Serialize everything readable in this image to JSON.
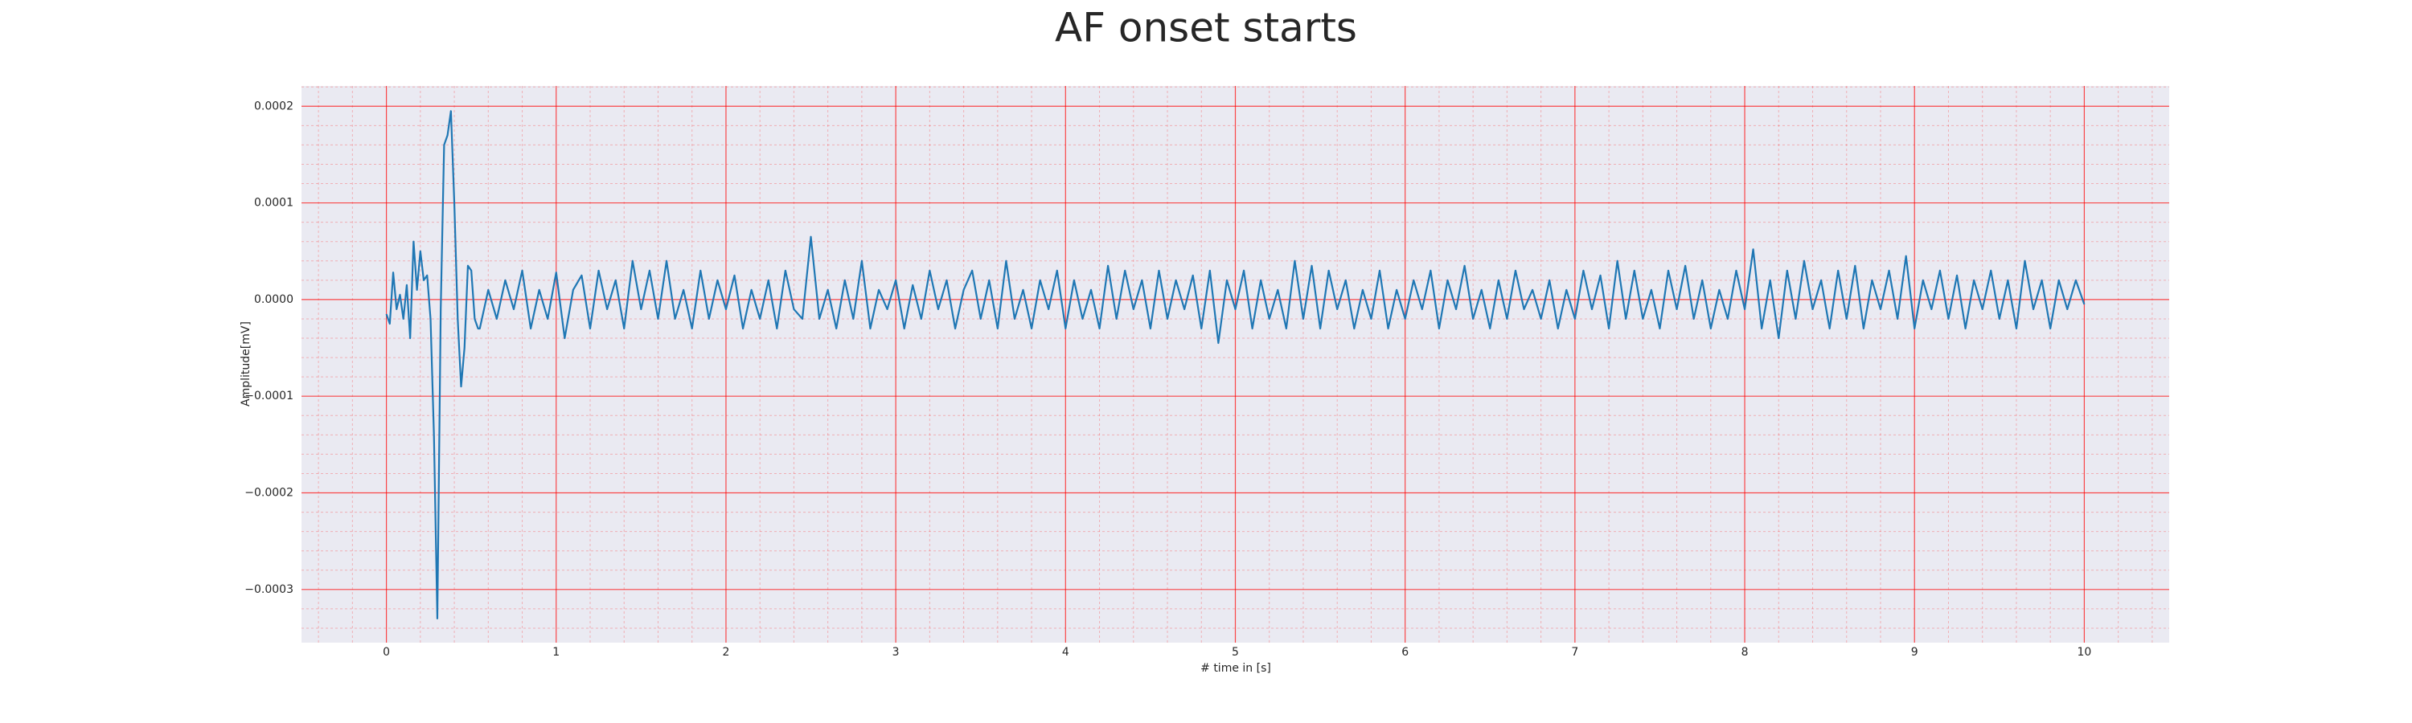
{
  "chart_data": {
    "type": "line",
    "title": "AF onset starts",
    "x_label": "# time in [s]",
    "y_label": "Amplitude[mV]",
    "color": "#1f77b4",
    "grid": true,
    "grid_color": "#ff0000",
    "background": "#eaeaf2",
    "xlim": [
      -0.5,
      10.5
    ],
    "ylim": [
      -0.000355,
      0.000221
    ],
    "xticks": [
      0,
      1,
      2,
      3,
      4,
      5,
      6,
      7,
      8,
      9,
      10
    ],
    "yticks": [
      {
        "value": -0.0003,
        "label": "−0.0003"
      },
      {
        "value": -0.0002,
        "label": "−0.0002"
      },
      {
        "value": -0.0001,
        "label": "−0.0001"
      },
      {
        "value": 0,
        "label": "0.0000"
      },
      {
        "value": 0.0001,
        "label": "0.0001"
      },
      {
        "value": 0.0002,
        "label": "0.0002"
      }
    ],
    "xminorticks": [
      -0.4,
      -0.2,
      0.2,
      0.4,
      0.6,
      0.8,
      1.2,
      1.4,
      1.6,
      1.8,
      2.2,
      2.4,
      2.6,
      2.8,
      3.2,
      3.4,
      3.6,
      3.8,
      4.2,
      4.4,
      4.6,
      4.8,
      5.2,
      5.4,
      5.6,
      5.8,
      6.2,
      6.4,
      6.6,
      6.8,
      7.2,
      7.4,
      7.6,
      7.8,
      8.2,
      8.4,
      8.6,
      8.8,
      9.2,
      9.4,
      9.6,
      9.8,
      10.2,
      10.4
    ],
    "yminorticks": [
      -0.00034,
      -0.00032,
      -0.00028,
      -0.00026,
      -0.00024,
      -0.00022,
      -0.00018,
      -0.00016,
      -0.00014,
      -0.00012,
      -8e-05,
      -6e-05,
      -4e-05,
      -2e-05,
      2e-05,
      4e-05,
      6e-05,
      8e-05,
      0.00012,
      0.00014,
      0.00016,
      0.00018,
      0.00022
    ],
    "x": [
      0,
      0.02,
      0.04,
      0.06,
      0.08,
      0.1,
      0.12,
      0.14,
      0.16,
      0.18,
      0.2,
      0.22,
      0.24,
      0.26,
      0.28,
      0.3,
      0.32,
      0.34,
      0.36,
      0.38,
      0.4,
      0.42,
      0.44,
      0.46,
      0.48,
      0.5,
      0.52,
      0.54,
      0.55,
      0.6,
      0.65,
      0.7,
      0.75,
      0.8,
      0.85,
      0.9,
      0.95,
      1.0,
      1.05,
      1.1,
      1.15,
      1.2,
      1.25,
      1.3,
      1.35,
      1.4,
      1.45,
      1.5,
      1.55,
      1.6,
      1.65,
      1.7,
      1.75,
      1.8,
      1.85,
      1.9,
      1.95,
      2.0,
      2.05,
      2.1,
      2.15,
      2.2,
      2.25,
      2.3,
      2.35,
      2.4,
      2.45,
      2.5,
      2.55,
      2.6,
      2.65,
      2.7,
      2.75,
      2.8,
      2.85,
      2.9,
      2.95,
      3.0,
      3.05,
      3.1,
      3.15,
      3.2,
      3.25,
      3.3,
      3.35,
      3.4,
      3.45,
      3.5,
      3.55,
      3.6,
      3.65,
      3.7,
      3.75,
      3.8,
      3.85,
      3.9,
      3.95,
      4.0,
      4.05,
      4.1,
      4.15,
      4.2,
      4.25,
      4.3,
      4.35,
      4.4,
      4.45,
      4.5,
      4.55,
      4.6,
      4.65,
      4.7,
      4.75,
      4.8,
      4.85,
      4.9,
      4.95,
      5.0,
      5.05,
      5.1,
      5.15,
      5.2,
      5.25,
      5.3,
      5.35,
      5.4,
      5.45,
      5.5,
      5.55,
      5.6,
      5.65,
      5.7,
      5.75,
      5.8,
      5.85,
      5.9,
      5.95,
      6.0,
      6.05,
      6.1,
      6.15,
      6.2,
      6.25,
      6.3,
      6.35,
      6.4,
      6.45,
      6.5,
      6.55,
      6.6,
      6.65,
      6.7,
      6.75,
      6.8,
      6.85,
      6.9,
      6.95,
      7.0,
      7.05,
      7.1,
      7.15,
      7.2,
      7.25,
      7.3,
      7.35,
      7.4,
      7.45,
      7.5,
      7.55,
      7.6,
      7.65,
      7.7,
      7.75,
      7.8,
      7.85,
      7.9,
      7.95,
      8.0,
      8.05,
      8.1,
      8.15,
      8.2,
      8.25,
      8.3,
      8.35,
      8.4,
      8.45,
      8.5,
      8.55,
      8.6,
      8.65,
      8.7,
      8.75,
      8.8,
      8.85,
      8.9,
      8.95,
      9.0,
      9.05,
      9.1,
      9.15,
      9.2,
      9.25,
      9.3,
      9.35,
      9.4,
      9.45,
      9.5,
      9.55,
      9.6,
      9.65,
      9.7,
      9.75,
      9.8,
      9.85,
      9.9,
      9.95,
      10.0
    ],
    "values": [
      -1.5e-05,
      -2.5e-05,
      2.8e-05,
      -1e-05,
      5e-06,
      -2e-05,
      1.5e-05,
      -4e-05,
      6e-05,
      1e-05,
      5e-05,
      2e-05,
      2.5e-05,
      -2e-05,
      -0.00014,
      -0.00033,
      -1e-05,
      0.00016,
      0.00017,
      0.000195,
      0.0001,
      -2e-05,
      -9e-05,
      -5e-05,
      3.5e-05,
      3e-05,
      -2e-05,
      -3e-05,
      -3e-05,
      1e-05,
      -2e-05,
      2e-05,
      -1e-05,
      3e-05,
      -3e-05,
      1e-05,
      -2e-05,
      2.8e-05,
      -4e-05,
      1e-05,
      2.5e-05,
      -3e-05,
      3e-05,
      -1e-05,
      2e-05,
      -3e-05,
      4e-05,
      -1e-05,
      3e-05,
      -2e-05,
      4e-05,
      -2e-05,
      1e-05,
      -3e-05,
      3e-05,
      -2e-05,
      2e-05,
      -1e-05,
      2.5e-05,
      -3e-05,
      1e-05,
      -2e-05,
      2e-05,
      -3e-05,
      3e-05,
      -1e-05,
      -2e-05,
      6.5e-05,
      -2e-05,
      1e-05,
      -3e-05,
      2e-05,
      -2e-05,
      4e-05,
      -3e-05,
      1e-05,
      -1e-05,
      2e-05,
      -3e-05,
      1.5e-05,
      -2e-05,
      3e-05,
      -1e-05,
      2e-05,
      -3e-05,
      1e-05,
      3e-05,
      -2e-05,
      2e-05,
      -3e-05,
      4e-05,
      -2e-05,
      1e-05,
      -3e-05,
      2e-05,
      -1e-05,
      3e-05,
      -3e-05,
      2e-05,
      -2e-05,
      1e-05,
      -3e-05,
      3.5e-05,
      -2e-05,
      3e-05,
      -1e-05,
      2e-05,
      -3e-05,
      3e-05,
      -2e-05,
      2e-05,
      -1e-05,
      2.5e-05,
      -3e-05,
      3e-05,
      -4.5e-05,
      2e-05,
      -1e-05,
      3e-05,
      -3e-05,
      2e-05,
      -2e-05,
      1e-05,
      -3e-05,
      4e-05,
      -2e-05,
      3.5e-05,
      -3e-05,
      3e-05,
      -1e-05,
      2e-05,
      -3e-05,
      1e-05,
      -2e-05,
      3e-05,
      -3e-05,
      1e-05,
      -2e-05,
      2e-05,
      -1e-05,
      3e-05,
      -3e-05,
      2e-05,
      -1e-05,
      3.5e-05,
      -2e-05,
      1e-05,
      -3e-05,
      2e-05,
      -2e-05,
      3e-05,
      -1e-05,
      1e-05,
      -2e-05,
      2e-05,
      -3e-05,
      1e-05,
      -2e-05,
      3e-05,
      -1e-05,
      2.5e-05,
      -3e-05,
      4e-05,
      -2e-05,
      3e-05,
      -2e-05,
      1e-05,
      -3e-05,
      3e-05,
      -1e-05,
      3.5e-05,
      -2e-05,
      2e-05,
      -3e-05,
      1e-05,
      -2e-05,
      3e-05,
      -1e-05,
      5.2e-05,
      -3e-05,
      2e-05,
      -4e-05,
      3e-05,
      -2e-05,
      4e-05,
      -1e-05,
      2e-05,
      -3e-05,
      3e-05,
      -2e-05,
      3.5e-05,
      -3e-05,
      2e-05,
      -1e-05,
      3e-05,
      -2e-05,
      4.5e-05,
      -3e-05,
      2e-05,
      -1e-05,
      3e-05,
      -2e-05,
      2.5e-05,
      -3e-05,
      2e-05,
      -1e-05,
      3e-05,
      -2e-05,
      2e-05,
      -3e-05,
      4e-05,
      -1e-05,
      2e-05,
      -3e-05,
      2e-05,
      -1e-05,
      2e-05,
      -5e-06
    ]
  }
}
